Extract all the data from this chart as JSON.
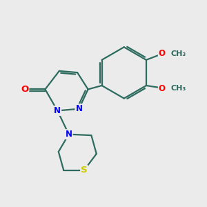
{
  "bg_color": "#ebebeb",
  "bond_color": "#2d6b5e",
  "bond_width": 1.6,
  "atom_colors": {
    "O": "#ff0000",
    "N": "#0000ff",
    "S": "#cccc00",
    "C": "#2d6b5e"
  },
  "font_size": 8.5,
  "fig_size": [
    3.0,
    3.0
  ],
  "dpi": 100,
  "ome_label": "O—CH₃",
  "methoxy1": "O",
  "methoxy2": "O",
  "methyl": "CH₃"
}
